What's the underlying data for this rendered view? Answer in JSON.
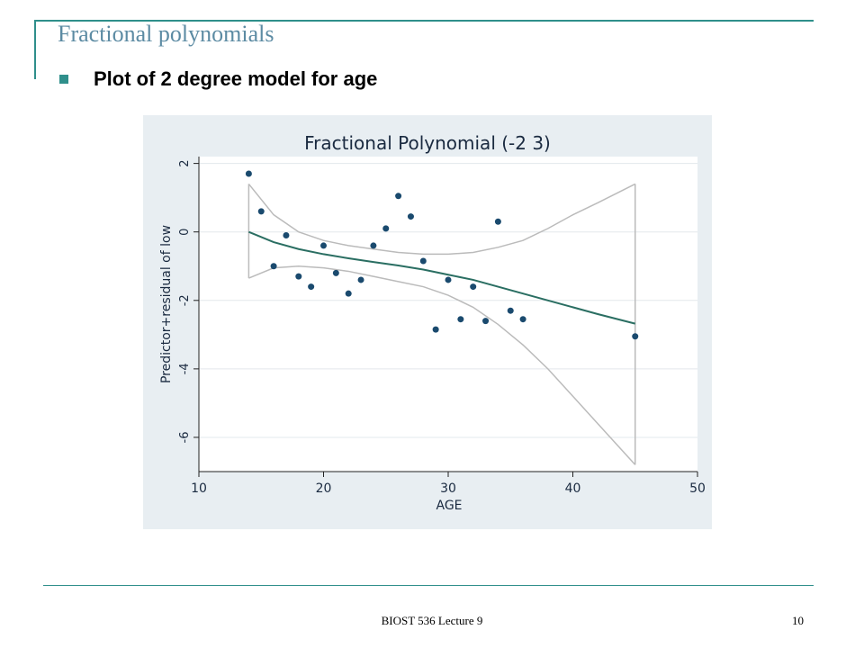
{
  "slide": {
    "title": "Fractional polynomials",
    "bullet": "Plot of 2 degree model for age",
    "footer": "BIOST 536 Lecture 9",
    "page_number": "10"
  },
  "colors": {
    "accent": "#2f8f8b",
    "title_text": "#5c8ba3",
    "chart_background": "#e8eef2",
    "plot_background": "#ffffff",
    "points": "#1a4a6e",
    "fit_line": "#2a6e62",
    "ci_band": "#bbbbbb"
  },
  "chart_data": {
    "type": "scatter",
    "title": "Fractional Polynomial (-2 3)",
    "xlabel": "AGE",
    "ylabel": "Predictor+residual of low",
    "xlim": [
      10,
      50
    ],
    "ylim": [
      -7,
      2.2
    ],
    "x_ticks": [
      10,
      20,
      30,
      40,
      50
    ],
    "y_ticks": [
      -6,
      -4,
      -2,
      0,
      2
    ],
    "grid": true,
    "points": [
      {
        "x": 14,
        "y": 1.7
      },
      {
        "x": 15,
        "y": 0.6
      },
      {
        "x": 16,
        "y": -1.0
      },
      {
        "x": 17,
        "y": -0.1
      },
      {
        "x": 18,
        "y": -1.3
      },
      {
        "x": 19,
        "y": -1.6
      },
      {
        "x": 20,
        "y": -0.4
      },
      {
        "x": 21,
        "y": -1.2
      },
      {
        "x": 22,
        "y": -1.8
      },
      {
        "x": 23,
        "y": -1.4
      },
      {
        "x": 24,
        "y": -0.4
      },
      {
        "x": 25,
        "y": 0.1
      },
      {
        "x": 26,
        "y": 1.05
      },
      {
        "x": 27,
        "y": 0.45
      },
      {
        "x": 28,
        "y": -0.85
      },
      {
        "x": 29,
        "y": -2.85
      },
      {
        "x": 30,
        "y": -1.4
      },
      {
        "x": 31,
        "y": -2.55
      },
      {
        "x": 32,
        "y": -1.6
      },
      {
        "x": 33,
        "y": -2.6
      },
      {
        "x": 34,
        "y": 0.3
      },
      {
        "x": 35,
        "y": -2.3
      },
      {
        "x": 36,
        "y": -2.55
      },
      {
        "x": 45,
        "y": -3.05
      }
    ],
    "fit": {
      "x": [
        14,
        16,
        18,
        20,
        22,
        24,
        26,
        28,
        30,
        32,
        34,
        36,
        38,
        40,
        42,
        45
      ],
      "y": [
        0.0,
        -0.3,
        -0.5,
        -0.65,
        -0.77,
        -0.88,
        -0.98,
        -1.1,
        -1.25,
        -1.4,
        -1.6,
        -1.8,
        -2.0,
        -2.2,
        -2.4,
        -2.68
      ]
    },
    "ci_upper": {
      "x": [
        14,
        16,
        18,
        20,
        22,
        24,
        26,
        28,
        30,
        32,
        34,
        36,
        38,
        40,
        42,
        45
      ],
      "y": [
        1.4,
        0.5,
        0.0,
        -0.25,
        -0.4,
        -0.5,
        -0.6,
        -0.65,
        -0.65,
        -0.6,
        -0.45,
        -0.25,
        0.1,
        0.5,
        0.85,
        1.4
      ]
    },
    "ci_lower": {
      "x": [
        14,
        16,
        18,
        20,
        22,
        24,
        26,
        28,
        30,
        32,
        34,
        36,
        38,
        40,
        42,
        45
      ],
      "y": [
        -1.35,
        -1.05,
        -1.0,
        -1.05,
        -1.15,
        -1.3,
        -1.45,
        -1.6,
        -1.85,
        -2.2,
        -2.7,
        -3.3,
        -4.0,
        -4.8,
        -5.6,
        -6.8
      ]
    }
  }
}
